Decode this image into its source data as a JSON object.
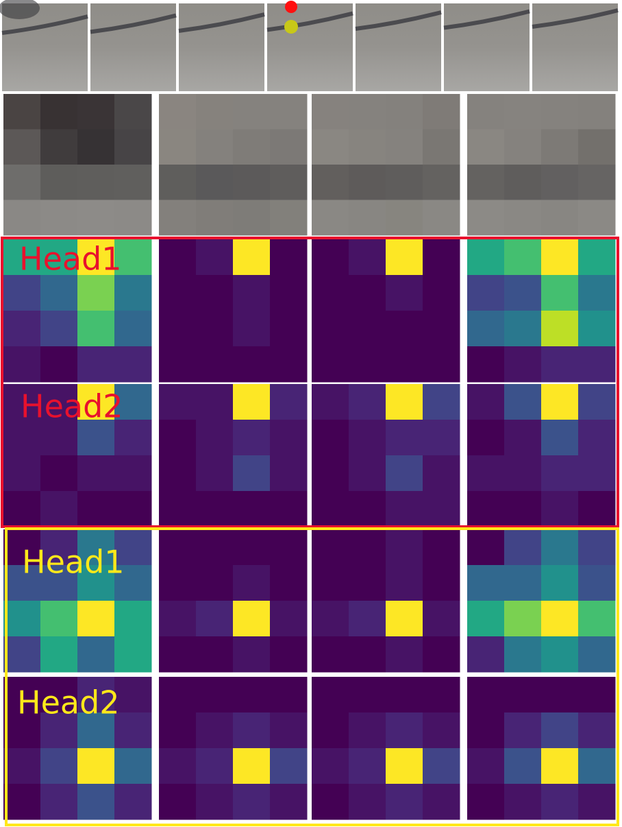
{
  "groups": [
    {
      "color": "#e8112d",
      "heads": [
        "Head1",
        "Head2"
      ]
    },
    {
      "color": "#ffe81a",
      "heads": [
        "Head1",
        "Head2"
      ]
    }
  ]
}
